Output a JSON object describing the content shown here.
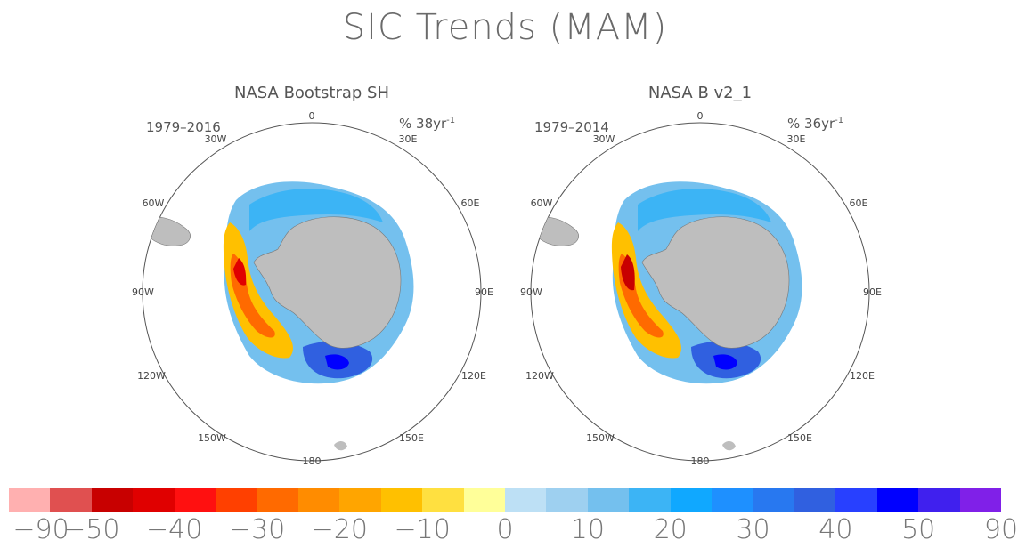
{
  "title": "SIC Trends (MAM)",
  "panels": [
    {
      "subtitle": "NASA Bootstrap SH",
      "period": "1979–2016",
      "units_main": "% 38yr",
      "units_exp": "-1",
      "lon_labels": {
        "top": "0",
        "r30": "30E",
        "l30": "30W",
        "r60": "60E",
        "l60": "60W",
        "r90": "90E",
        "l90": "90W",
        "r120": "120E",
        "l120": "120W",
        "r150": "150E",
        "l150": "150W",
        "bottom": "180"
      }
    },
    {
      "subtitle": "NASA B v2_1",
      "period": "1979–2014",
      "units_main": "% 36yr",
      "units_exp": "-1",
      "lon_labels": {
        "top": "0",
        "r30": "30E",
        "l30": "30W",
        "r60": "60E",
        "l60": "60W",
        "r90": "90E",
        "l90": "90W",
        "r120": "120E",
        "l120": "120W",
        "r150": "150E",
        "l150": "150W",
        "bottom": "180"
      }
    }
  ],
  "colorbar": {
    "colors": [
      "#ffb0b0",
      "#e05050",
      "#c80000",
      "#e00000",
      "#ff1010",
      "#ff4000",
      "#ff6a00",
      "#ff8c00",
      "#ffa500",
      "#ffc000",
      "#ffe040",
      "#ffff99",
      "#bde0f5",
      "#9ed0f0",
      "#74c0ee",
      "#3cb4f5",
      "#10a8ff",
      "#1e90ff",
      "#2878f0",
      "#3060e0",
      "#2840ff",
      "#0000ff",
      "#4020ee",
      "#8020e8"
    ],
    "tick_labels": [
      "−90",
      "−50",
      "−40",
      "−30",
      "−20",
      "−10",
      "0",
      "10",
      "20",
      "30",
      "40",
      "50",
      "90"
    ]
  },
  "colors": {
    "land": "#bebebe",
    "positive_trend": "#1e90ff",
    "negative_trend": "#ff4000"
  }
}
